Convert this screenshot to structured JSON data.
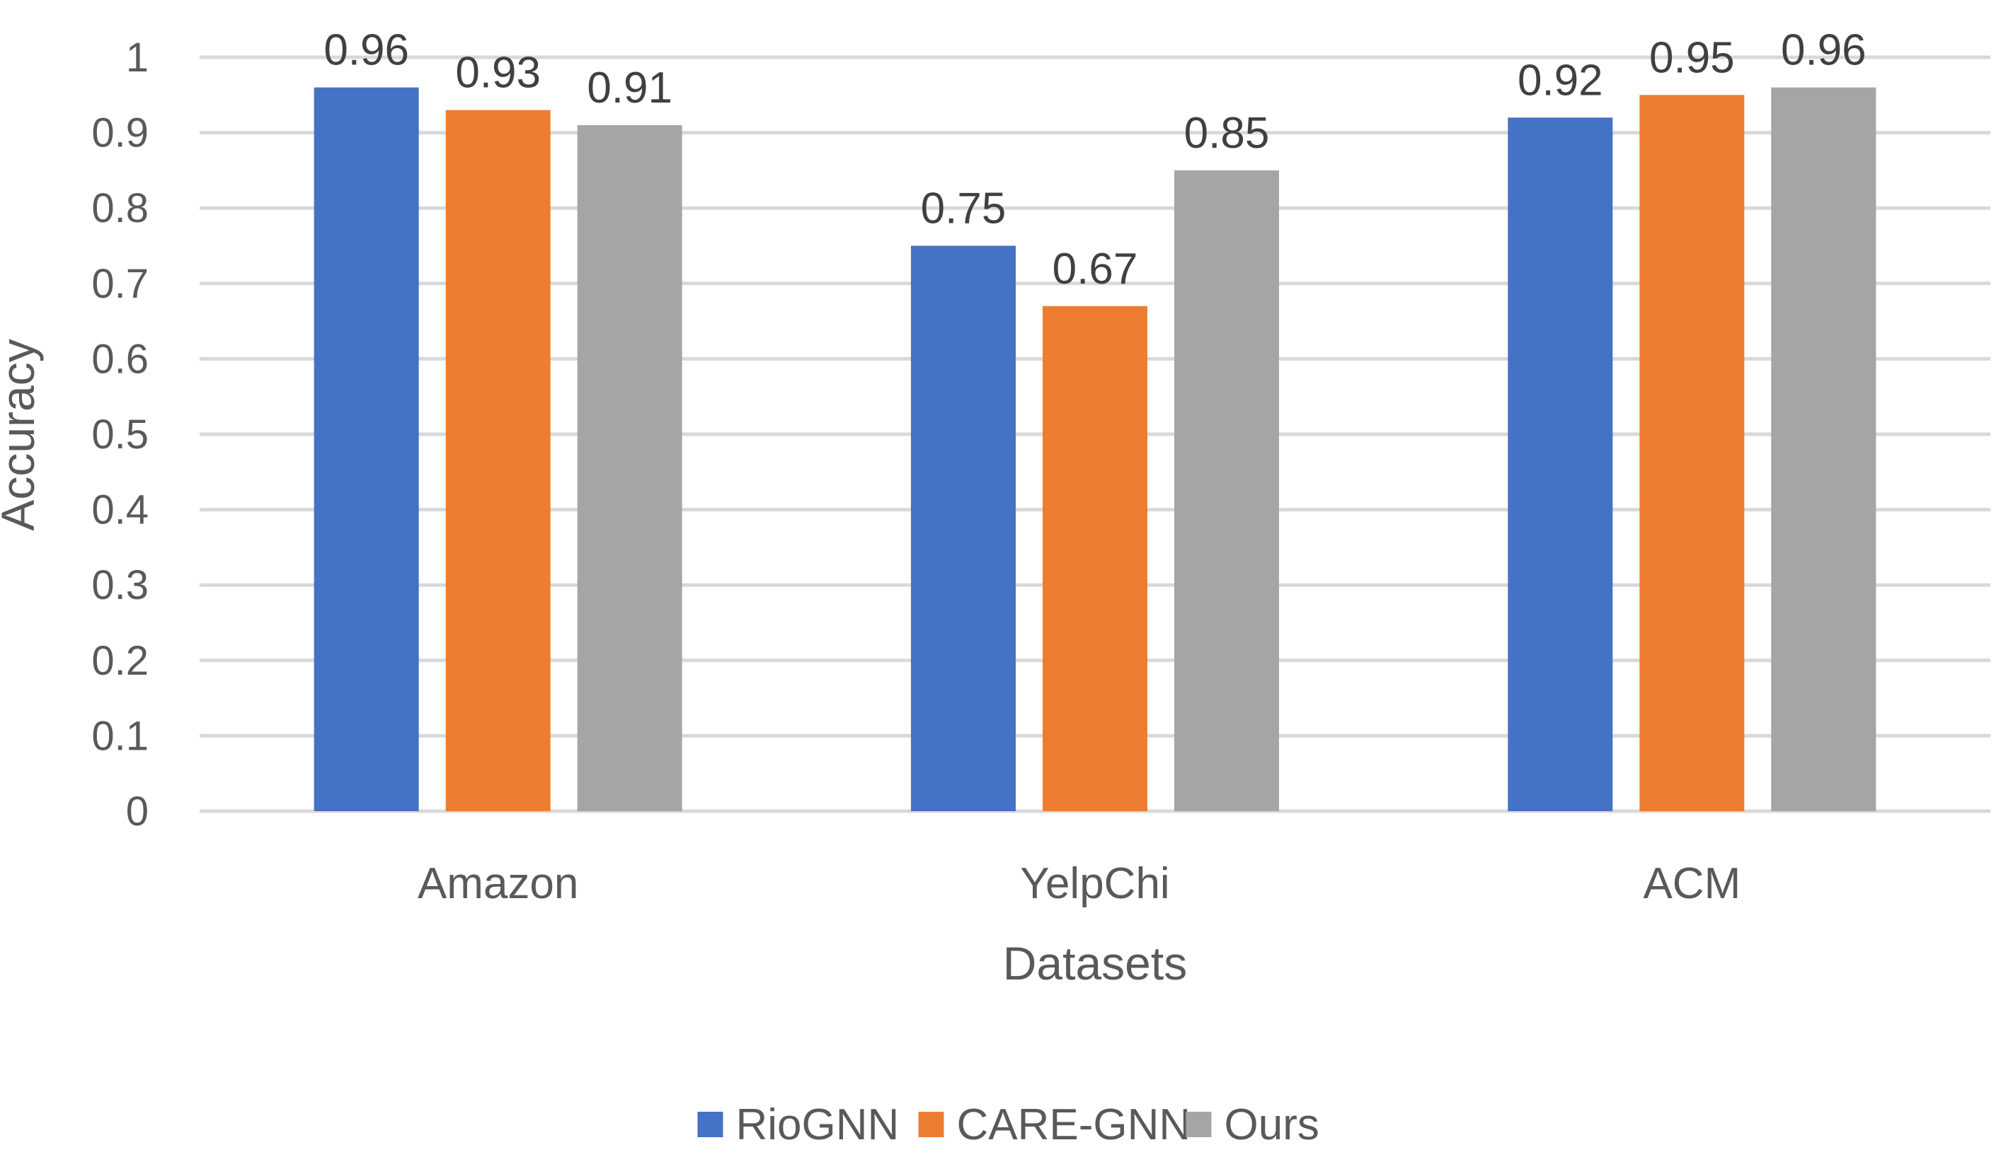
{
  "chart_data": {
    "type": "bar",
    "title": "",
    "xlabel": "Datasets",
    "ylabel": "Accuracy",
    "ylim": [
      0,
      1
    ],
    "yticks": [
      "0",
      "0.1",
      "0.2",
      "0.3",
      "0.4",
      "0.5",
      "0.6",
      "0.7",
      "0.8",
      "0.9",
      "1"
    ],
    "categories": [
      "Amazon",
      "YelpChi",
      "ACM"
    ],
    "series": [
      {
        "name": "RioGNN",
        "color": "#4472C4",
        "values": [
          0.96,
          0.75,
          0.92
        ],
        "labels": [
          "0.96",
          "0.75",
          "0.92"
        ]
      },
      {
        "name": "CARE-GNN",
        "color": "#ED7D31",
        "values": [
          0.93,
          0.67,
          0.95
        ],
        "labels": [
          "0.93",
          "0.67",
          "0.95"
        ]
      },
      {
        "name": "Ours",
        "color": "#A5A5A5",
        "values": [
          0.91,
          0.85,
          0.96
        ],
        "labels": [
          "0.91",
          "0.85",
          "0.96"
        ]
      }
    ],
    "grid": true,
    "legend_position": "bottom"
  }
}
